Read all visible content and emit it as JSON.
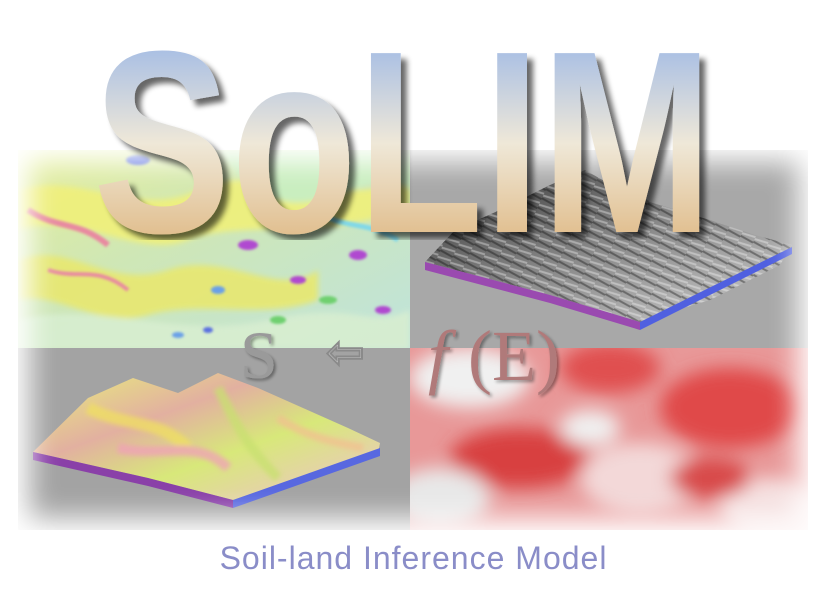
{
  "logo": {
    "text": "SoLIM"
  },
  "formula": {
    "left": "S",
    "arrow": "⇦",
    "function": "f",
    "argument": "(E)"
  },
  "tagline": "Soil-land Inference Model",
  "colors": {
    "title_top": "#8fb0e8",
    "title_bottom": "#d9a765",
    "tagline": "#8a8dc8",
    "formula": "#9a9a9a",
    "formula_f": "#b07a7a"
  }
}
